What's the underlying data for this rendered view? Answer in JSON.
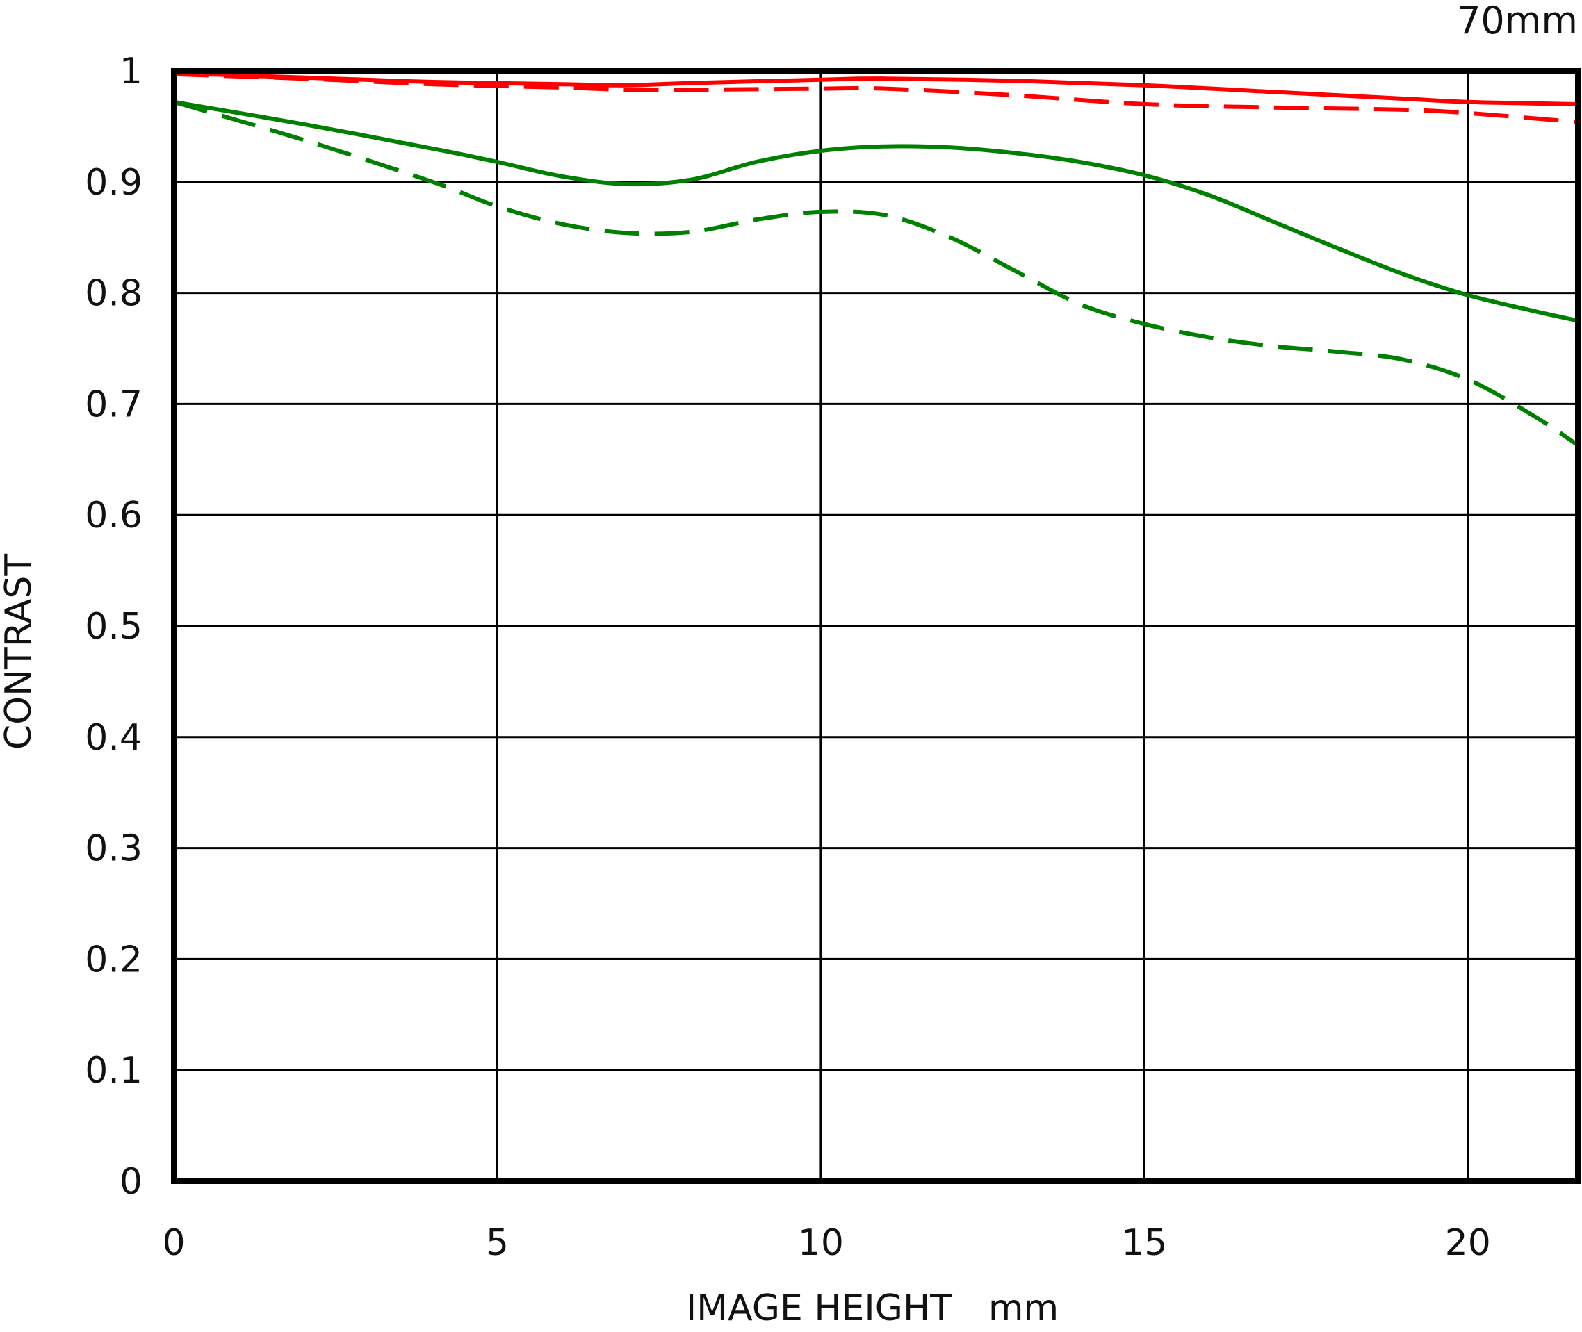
{
  "chart_data": {
    "type": "line",
    "title": "",
    "annotation": "70mm",
    "xlabel": "IMAGE HEIGHT　mm",
    "ylabel": "CONTRAST",
    "xlim": [
      0,
      21.7
    ],
    "ylim": [
      0,
      1
    ],
    "x_ticks": [
      0,
      5,
      10,
      15,
      20
    ],
    "x_tick_labels": [
      "0",
      "5",
      "10",
      "15",
      "20"
    ],
    "y_ticks": [
      0,
      0.1,
      0.2,
      0.3,
      0.4,
      0.5,
      0.6,
      0.7,
      0.8,
      0.9,
      1
    ],
    "y_tick_labels": [
      "0",
      "0.1",
      "0.2",
      "0.3",
      "0.4",
      "0.5",
      "0.6",
      "0.7",
      "0.8",
      "0.9",
      "1"
    ],
    "grid": true,
    "legend": "none",
    "series": [
      {
        "color": "#ff0000",
        "dash": "solid",
        "points": [
          [
            0,
            0.998
          ],
          [
            2,
            0.994
          ],
          [
            4,
            0.99
          ],
          [
            6,
            0.988
          ],
          [
            7,
            0.987
          ],
          [
            8,
            0.989
          ],
          [
            10,
            0.992
          ],
          [
            11,
            0.993
          ],
          [
            13,
            0.991
          ],
          [
            15,
            0.987
          ],
          [
            17,
            0.981
          ],
          [
            19,
            0.975
          ],
          [
            20,
            0.972
          ],
          [
            21.7,
            0.97
          ]
        ]
      },
      {
        "color": "#ff0000",
        "dash": "dashed",
        "points": [
          [
            0,
            0.997
          ],
          [
            2,
            0.993
          ],
          [
            4,
            0.988
          ],
          [
            6,
            0.985
          ],
          [
            7,
            0.983
          ],
          [
            8,
            0.983
          ],
          [
            10,
            0.984
          ],
          [
            11,
            0.984
          ],
          [
            13,
            0.978
          ],
          [
            15,
            0.97
          ],
          [
            17,
            0.967
          ],
          [
            19,
            0.965
          ],
          [
            20,
            0.962
          ],
          [
            21.7,
            0.954
          ]
        ]
      },
      {
        "color": "#008000",
        "dash": "solid",
        "points": [
          [
            0,
            0.972
          ],
          [
            2,
            0.952
          ],
          [
            4,
            0.93
          ],
          [
            5,
            0.918
          ],
          [
            6,
            0.905
          ],
          [
            7,
            0.898
          ],
          [
            8,
            0.902
          ],
          [
            9,
            0.918
          ],
          [
            10,
            0.928
          ],
          [
            11,
            0.932
          ],
          [
            12,
            0.931
          ],
          [
            13,
            0.926
          ],
          [
            14,
            0.918
          ],
          [
            15,
            0.906
          ],
          [
            16,
            0.888
          ],
          [
            17,
            0.864
          ],
          [
            18,
            0.84
          ],
          [
            19,
            0.817
          ],
          [
            20,
            0.798
          ],
          [
            21,
            0.784
          ],
          [
            21.7,
            0.775
          ]
        ]
      },
      {
        "color": "#008000",
        "dash": "dashed",
        "points": [
          [
            0,
            0.972
          ],
          [
            2,
            0.938
          ],
          [
            4,
            0.9
          ],
          [
            5,
            0.878
          ],
          [
            6,
            0.862
          ],
          [
            7,
            0.854
          ],
          [
            8,
            0.855
          ],
          [
            9,
            0.866
          ],
          [
            10,
            0.873
          ],
          [
            11,
            0.87
          ],
          [
            12,
            0.85
          ],
          [
            13,
            0.82
          ],
          [
            14,
            0.79
          ],
          [
            15,
            0.772
          ],
          [
            16,
            0.76
          ],
          [
            17,
            0.752
          ],
          [
            18,
            0.747
          ],
          [
            19,
            0.74
          ],
          [
            20,
            0.722
          ],
          [
            21,
            0.69
          ],
          [
            21.7,
            0.663
          ]
        ]
      }
    ]
  }
}
